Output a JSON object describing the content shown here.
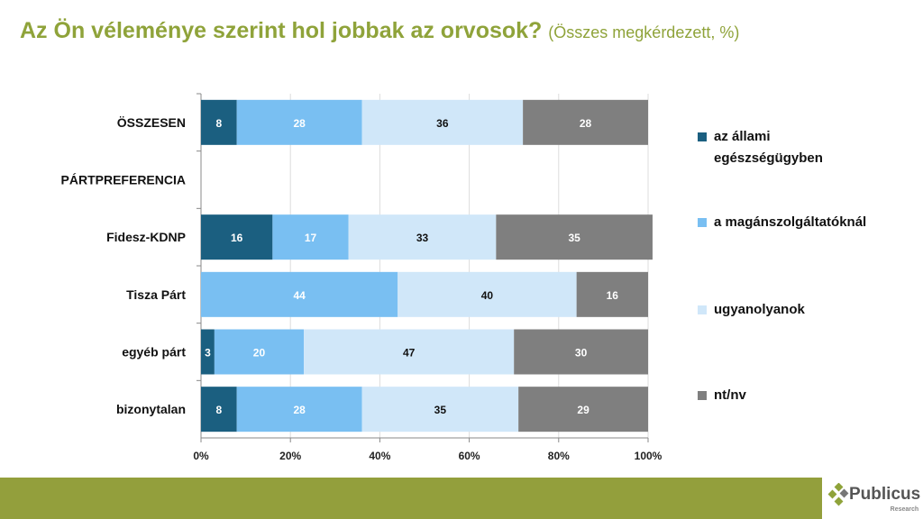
{
  "title": {
    "main": "Az Ön véleménye szerint hol jobbak az orvosok?",
    "sub": "(Összes megkérdezett, %)"
  },
  "chart_data": {
    "type": "bar",
    "orientation": "horizontal",
    "stacked": "100%",
    "categories": [
      "ÖSSZESEN",
      "PÁRTPREFERENCIA",
      "Fidesz-KDNP",
      "Tisza Párt",
      "egyéb párt",
      "bizonytalan"
    ],
    "series": [
      {
        "name": "az állami egészségügyben",
        "color": "#1b5f80",
        "values": [
          8,
          null,
          16,
          0,
          3,
          8
        ]
      },
      {
        "name": "a magánszolgáltatóknál",
        "color": "#79bff2",
        "values": [
          28,
          null,
          17,
          44,
          20,
          28
        ]
      },
      {
        "name": "ugyanolyanok",
        "color": "#d0e7f9",
        "values": [
          36,
          null,
          33,
          40,
          47,
          35
        ]
      },
      {
        "name": "nt/nv",
        "color": "#7f7f7f",
        "values": [
          28,
          null,
          35,
          16,
          30,
          29
        ]
      }
    ],
    "xticks": [
      "0%",
      "20%",
      "40%",
      "60%",
      "80%",
      "100%"
    ],
    "xlim": [
      0,
      100
    ],
    "grid": true,
    "legend": "right"
  },
  "logo": {
    "name": "Publicus",
    "tag": "Research"
  }
}
